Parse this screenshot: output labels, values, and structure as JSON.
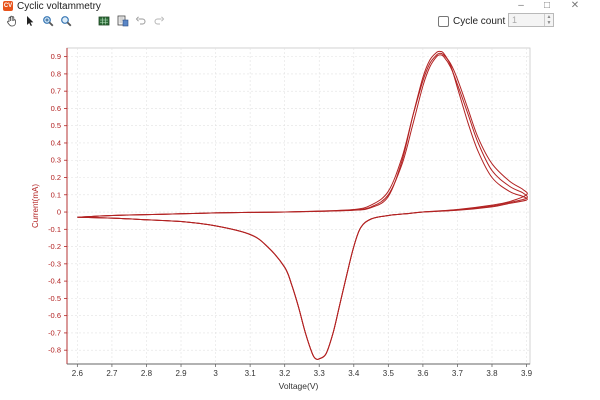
{
  "window": {
    "app_icon_text": "CV",
    "title": "Cyclic voltammetry",
    "minimize": "–",
    "maximize": "□",
    "close": "✕"
  },
  "toolbar": {
    "icons": [
      "hand-pan-icon",
      "pointer-arrow-icon",
      "zoom-in-icon",
      "zoom-reset-icon",
      "data-view-icon",
      "export-icon",
      "undo-icon",
      "redo-icon"
    ],
    "cycle_count_label": "Cycle count",
    "cycle_count_value": "1"
  },
  "colors": {
    "curve": "#b22222",
    "axis_text": "#b22222",
    "xaxis_text": "#333333",
    "grid": "#e2e2e2"
  },
  "chart_data": {
    "type": "line",
    "xlabel": "Voltage(V)",
    "ylabel": "Current(mA)",
    "xlim": [
      2.57,
      3.91
    ],
    "ylim": [
      -0.88,
      0.95
    ],
    "xticks": [
      2.6,
      2.7,
      2.8,
      2.9,
      3.0,
      3.1,
      3.2,
      3.3,
      3.4,
      3.5,
      3.6,
      3.7,
      3.8,
      3.9
    ],
    "xtick_labels": [
      "2.6",
      "2.7",
      "2.8",
      "2.9",
      "3",
      "3.1",
      "3.2",
      "3.3",
      "3.4",
      "3.5",
      "3.6",
      "3.7",
      "3.8",
      "3.9"
    ],
    "yticks": [
      0.9,
      0.8,
      0.7,
      0.6,
      0.5,
      0.4,
      0.3,
      0.2,
      0.1,
      0,
      -0.1,
      -0.2,
      -0.3,
      -0.4,
      -0.5,
      -0.6,
      -0.7,
      -0.8
    ],
    "ytick_labels": [
      "0.9",
      "0.8",
      "0.7",
      "0.6",
      "0.5",
      "0.4",
      "0.3",
      "0.2",
      "0.1",
      "0",
      "-0.1",
      "-0.2",
      "-0.3",
      "-0.4",
      "-0.5",
      "-0.6",
      "-0.7",
      "-0.8"
    ],
    "grid": true,
    "series": [
      {
        "x": [
          2.6,
          2.7,
          2.8,
          2.9,
          3.0,
          3.1,
          3.2,
          3.3,
          3.4,
          3.45,
          3.5,
          3.54,
          3.57,
          3.6,
          3.62,
          3.64,
          3.65,
          3.66,
          3.68,
          3.7,
          3.73,
          3.76,
          3.8,
          3.85,
          3.89,
          3.9,
          3.85,
          3.8,
          3.7,
          3.6,
          3.55,
          3.5,
          3.45,
          3.42,
          3.4,
          3.38,
          3.36,
          3.34,
          3.32,
          3.3,
          3.29,
          3.28,
          3.26,
          3.24,
          3.22,
          3.2,
          3.15,
          3.1,
          3.0,
          2.9,
          2.8,
          2.7,
          2.6
        ],
        "y": [
          -0.03,
          -0.02,
          -0.015,
          -0.01,
          -0.005,
          -0.002,
          0.0,
          0.005,
          0.01,
          0.025,
          0.09,
          0.3,
          0.55,
          0.78,
          0.88,
          0.925,
          0.93,
          0.92,
          0.85,
          0.72,
          0.52,
          0.35,
          0.2,
          0.12,
          0.09,
          0.07,
          0.05,
          0.03,
          0.01,
          0.0,
          -0.01,
          -0.02,
          -0.04,
          -0.09,
          -0.2,
          -0.36,
          -0.53,
          -0.7,
          -0.82,
          -0.85,
          -0.85,
          -0.82,
          -0.7,
          -0.55,
          -0.42,
          -0.32,
          -0.2,
          -0.13,
          -0.08,
          -0.055,
          -0.045,
          -0.035,
          -0.03
        ]
      },
      {
        "x": [
          2.6,
          2.7,
          2.8,
          2.9,
          3.0,
          3.1,
          3.2,
          3.3,
          3.4,
          3.45,
          3.5,
          3.54,
          3.57,
          3.6,
          3.62,
          3.64,
          3.65,
          3.66,
          3.68,
          3.7,
          3.73,
          3.76,
          3.8,
          3.85,
          3.89,
          3.9,
          3.85,
          3.8,
          3.7,
          3.6,
          3.55,
          3.5,
          3.45,
          3.42,
          3.4,
          3.38,
          3.36,
          3.34,
          3.32,
          3.3,
          3.29,
          3.28,
          3.26,
          3.24,
          3.22,
          3.2,
          3.15,
          3.1,
          3.0,
          2.9,
          2.8,
          2.7,
          2.6
        ],
        "y": [
          -0.03,
          -0.02,
          -0.015,
          -0.01,
          -0.005,
          -0.002,
          0.0,
          0.004,
          0.012,
          0.03,
          0.1,
          0.28,
          0.5,
          0.73,
          0.84,
          0.9,
          0.91,
          0.9,
          0.84,
          0.74,
          0.57,
          0.4,
          0.24,
          0.15,
          0.11,
          0.08,
          0.055,
          0.035,
          0.012,
          0.0,
          -0.01,
          -0.02,
          -0.04,
          -0.09,
          -0.2,
          -0.36,
          -0.53,
          -0.7,
          -0.82,
          -0.85,
          -0.85,
          -0.82,
          -0.7,
          -0.55,
          -0.42,
          -0.32,
          -0.2,
          -0.13,
          -0.08,
          -0.055,
          -0.045,
          -0.035,
          -0.03
        ]
      },
      {
        "x": [
          2.6,
          2.7,
          2.8,
          2.9,
          3.0,
          3.1,
          3.2,
          3.3,
          3.4,
          3.45,
          3.5,
          3.54,
          3.57,
          3.6,
          3.62,
          3.64,
          3.65,
          3.66,
          3.68,
          3.7,
          3.73,
          3.76,
          3.8,
          3.85,
          3.89,
          3.9,
          3.85,
          3.8,
          3.7,
          3.6,
          3.55,
          3.5,
          3.45,
          3.42,
          3.4,
          3.38,
          3.36,
          3.34,
          3.32,
          3.3,
          3.29,
          3.28,
          3.26,
          3.24,
          3.22,
          3.2,
          3.15,
          3.1,
          3.0,
          2.9,
          2.8,
          2.7,
          2.6
        ],
        "y": [
          -0.03,
          -0.02,
          -0.015,
          -0.01,
          -0.005,
          -0.002,
          0.0,
          0.006,
          0.015,
          0.04,
          0.12,
          0.32,
          0.55,
          0.76,
          0.86,
          0.91,
          0.92,
          0.91,
          0.86,
          0.77,
          0.6,
          0.43,
          0.28,
          0.18,
          0.13,
          0.1,
          0.06,
          0.04,
          0.015,
          0.0,
          -0.01,
          -0.02,
          -0.04,
          -0.09,
          -0.2,
          -0.36,
          -0.53,
          -0.7,
          -0.82,
          -0.85,
          -0.85,
          -0.82,
          -0.7,
          -0.55,
          -0.42,
          -0.32,
          -0.2,
          -0.13,
          -0.08,
          -0.055,
          -0.045,
          -0.035,
          -0.03
        ]
      }
    ]
  }
}
